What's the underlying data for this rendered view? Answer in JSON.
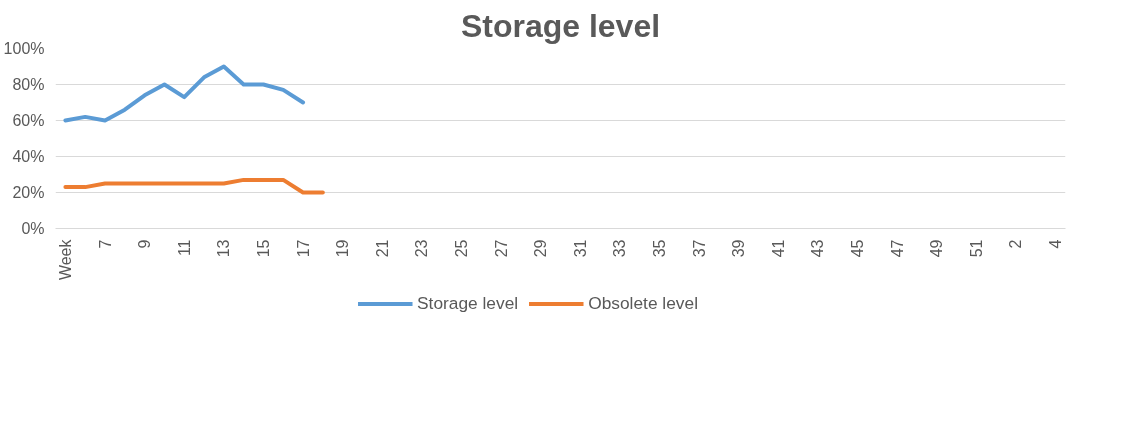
{
  "chart_data": {
    "type": "line",
    "title": "Storage level",
    "categories": [
      "Week",
      null,
      "7",
      null,
      "9",
      null,
      "11",
      null,
      "13",
      null,
      "15",
      null,
      "17",
      null,
      "19",
      null,
      "21",
      null,
      "23",
      null,
      "25",
      null,
      "27",
      null,
      "29",
      null,
      "31",
      null,
      "33",
      null,
      "35",
      null,
      "37",
      null,
      "39",
      null,
      "41",
      null,
      "43",
      null,
      "45",
      null,
      "47",
      null,
      "49",
      null,
      "51",
      null,
      "2",
      null,
      "4"
    ],
    "series": [
      {
        "name": "Storage level",
        "color": "#5b9bd5",
        "values": [
          60,
          62,
          60,
          66,
          74,
          80,
          73,
          84,
          90,
          80,
          80,
          77,
          70,
          null,
          null,
          null,
          null,
          null,
          null,
          null,
          null,
          null,
          null,
          null,
          null,
          null,
          null,
          null,
          null,
          null,
          null,
          null,
          null,
          null,
          null,
          null,
          null,
          null,
          null,
          null,
          null,
          null,
          null,
          null,
          null,
          null,
          null,
          null,
          null,
          null,
          null
        ]
      },
      {
        "name": "Obsolete level",
        "color": "#ed7d31",
        "values": [
          23,
          23,
          25,
          25,
          25,
          25,
          25,
          25,
          25,
          27,
          27,
          27,
          20,
          20,
          null,
          null,
          null,
          null,
          null,
          null,
          null,
          null,
          null,
          null,
          null,
          null,
          null,
          null,
          null,
          null,
          null,
          null,
          null,
          null,
          null,
          null,
          null,
          null,
          null,
          null,
          null,
          null,
          null,
          null,
          null,
          null,
          null,
          null,
          null,
          null,
          null
        ]
      }
    ],
    "ylim": [
      0,
      100
    ],
    "yticks": [
      {
        "value": 0,
        "label": "0%"
      },
      {
        "value": 20,
        "label": "20%"
      },
      {
        "value": 40,
        "label": "40%"
      },
      {
        "value": 60,
        "label": "60%"
      },
      {
        "value": 80,
        "label": "80%"
      },
      {
        "value": 100,
        "label": "100%"
      }
    ],
    "grid": "y",
    "legend": "bottom",
    "marker": "none",
    "line_style": "solid"
  }
}
